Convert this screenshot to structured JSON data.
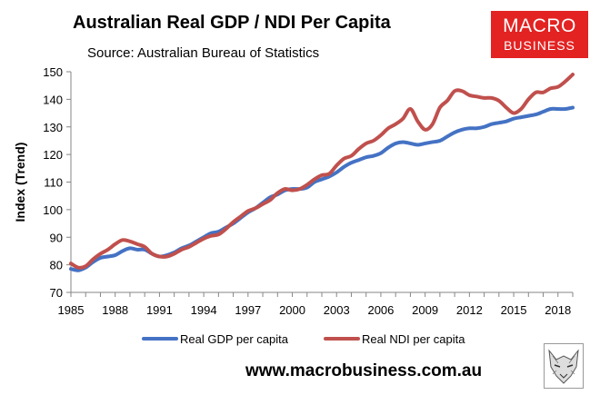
{
  "header": {
    "title": "Australian Real GDP / NDI Per Capita",
    "source": "Source: Australian Bureau of Statistics"
  },
  "logo": {
    "line1": "MACRO",
    "line2": "BUSINESS"
  },
  "footer": {
    "url": "www.macrobusiness.com.au"
  },
  "colors": {
    "gdp": "#4472c4",
    "ndi": "#c0504d",
    "logo_bg": "#e32222"
  },
  "chart_data": {
    "type": "line",
    "title": "Australian Real GDP / NDI Per Capita",
    "xlabel": "",
    "ylabel": "Index (Trend)",
    "xlim": [
      1985,
      2019
    ],
    "ylim": [
      70,
      150
    ],
    "xticks": [
      1985,
      1988,
      1991,
      1994,
      1997,
      2000,
      2003,
      2006,
      2009,
      2012,
      2015,
      2018
    ],
    "yticks": [
      70,
      80,
      90,
      100,
      110,
      120,
      130,
      140,
      150
    ],
    "grid": false,
    "legend": "bottom",
    "series": [
      {
        "name": "Real GDP per capita",
        "color": "#4472c4",
        "x": [
          1985,
          1985.5,
          1986,
          1986.5,
          1987,
          1987.5,
          1988,
          1988.5,
          1989,
          1989.5,
          1990,
          1990.5,
          1991,
          1991.5,
          1992,
          1992.5,
          1993,
          1993.5,
          1994,
          1994.5,
          1995,
          1995.5,
          1996,
          1996.5,
          1997,
          1997.5,
          1998,
          1998.5,
          1999,
          1999.5,
          2000,
          2000.5,
          2001,
          2001.5,
          2002,
          2002.5,
          2003,
          2003.5,
          2004,
          2004.5,
          2005,
          2005.5,
          2006,
          2006.5,
          2007,
          2007.5,
          2008,
          2008.5,
          2009,
          2009.5,
          2010,
          2010.5,
          2011,
          2011.5,
          2012,
          2012.5,
          2013,
          2013.5,
          2014,
          2014.5,
          2015,
          2015.5,
          2016,
          2016.5,
          2017,
          2017.5,
          2018,
          2018.5,
          2019
        ],
        "values": [
          78.5,
          78,
          79,
          81,
          82.5,
          83,
          83.5,
          85,
          86,
          85.5,
          85.5,
          84,
          83,
          83.5,
          84.5,
          86,
          87,
          88.5,
          90,
          91.5,
          92,
          93.5,
          95,
          97,
          99,
          100.5,
          102.5,
          104.5,
          105.5,
          107,
          107.5,
          107.5,
          108,
          110,
          111,
          112,
          113.5,
          115.5,
          117,
          118,
          119,
          119.5,
          120.5,
          122.5,
          124,
          124.5,
          124,
          123.5,
          124,
          124.5,
          125,
          126.5,
          128,
          129,
          129.5,
          129.5,
          130,
          131,
          131.5,
          132,
          133,
          133.5,
          134,
          134.5,
          135.5,
          136.5,
          136.5,
          136.5,
          137
        ]
      },
      {
        "name": "Real NDI per capita",
        "color": "#c0504d",
        "x": [
          1985,
          1985.5,
          1986,
          1986.5,
          1987,
          1987.5,
          1988,
          1988.5,
          1989,
          1989.5,
          1990,
          1990.5,
          1991,
          1991.5,
          1992,
          1992.5,
          1993,
          1993.5,
          1994,
          1994.5,
          1995,
          1995.5,
          1996,
          1996.5,
          1997,
          1997.5,
          1998,
          1998.5,
          1999,
          1999.5,
          2000,
          2000.5,
          2001,
          2001.5,
          2002,
          2002.5,
          2003,
          2003.5,
          2004,
          2004.5,
          2005,
          2005.5,
          2006,
          2006.5,
          2007,
          2007.5,
          2008,
          2008.5,
          2009,
          2009.5,
          2010,
          2010.5,
          2011,
          2011.5,
          2012,
          2012.5,
          2013,
          2013.5,
          2014,
          2014.5,
          2015,
          2015.5,
          2016,
          2016.5,
          2017,
          2017.5,
          2018,
          2018.5,
          2019
        ],
        "values": [
          80.5,
          79,
          79.5,
          82,
          84,
          85.5,
          87.5,
          89,
          88.5,
          87.5,
          86.5,
          84,
          83,
          83,
          84,
          85.5,
          86.5,
          88,
          89.5,
          90.5,
          91,
          93,
          95.5,
          97.5,
          99.5,
          100.5,
          102,
          103.5,
          106,
          107.5,
          107,
          107.5,
          109,
          111,
          112.5,
          113,
          116,
          118.5,
          119.5,
          122,
          124,
          125,
          127,
          129.5,
          131,
          133,
          136.5,
          132,
          129,
          131,
          137,
          139.5,
          143,
          143,
          141.5,
          141,
          140.5,
          140.5,
          139.5,
          137,
          135,
          136.5,
          140,
          142.5,
          142.5,
          144,
          144.5,
          146.5,
          149
        ]
      }
    ]
  }
}
